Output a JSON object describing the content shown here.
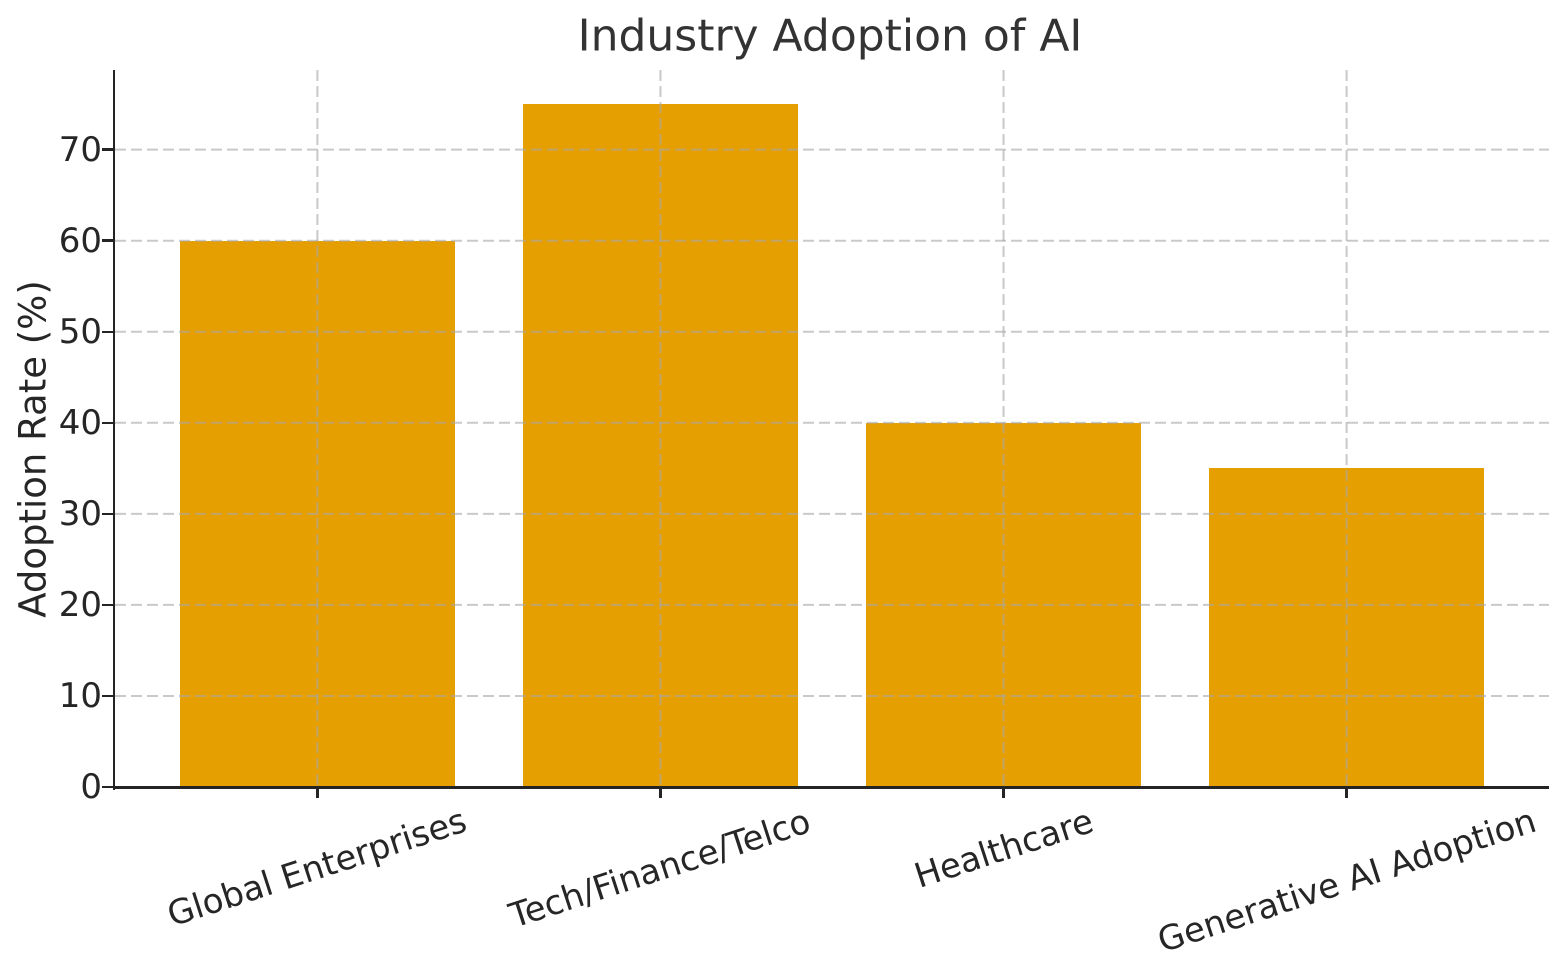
{
  "chart_data": {
    "type": "bar",
    "title": "Industry Adoption of AI",
    "ylabel": "Adoption Rate (%)",
    "xlabel": "",
    "categories": [
      "Global Enterprises",
      "Tech/Finance/Telco",
      "Healthcare",
      "Generative AI Adoption"
    ],
    "values": [
      60,
      75,
      40,
      35
    ],
    "yticks": [
      0,
      10,
      20,
      30,
      40,
      50,
      60,
      70
    ],
    "ylim": [
      0,
      78.75
    ],
    "legend": "none",
    "grid": "dashed gray, horizontal and vertical, drawn above bars",
    "spines": "left and bottom only",
    "colors": {
      "bar": "#E69F00",
      "grid": "#a8a8a8",
      "spine": "#242424",
      "tick_text": "#262626",
      "title_text": "#333333"
    }
  }
}
